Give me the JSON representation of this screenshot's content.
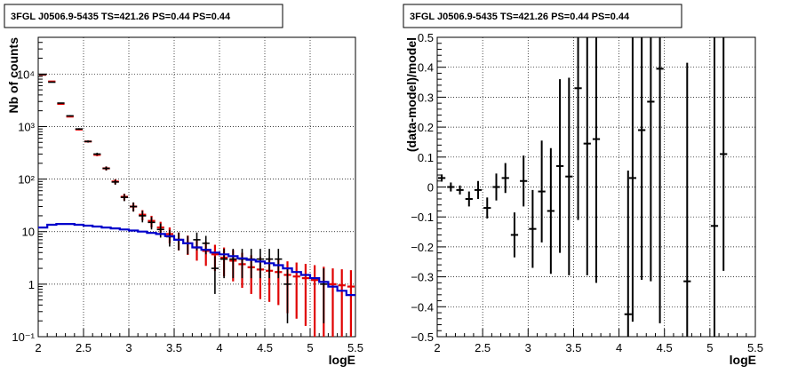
{
  "chart_data": [
    {
      "type": "scatter",
      "title": "3FGL J0506.9-5435 TS=421.26 PS=0.44 PS=0.44",
      "xlabel": "logE",
      "ylabel": "Nb of counts",
      "xlim": [
        2,
        5.5
      ],
      "ylim": [
        0.1,
        50000
      ],
      "yscale": "log",
      "grid": true,
      "x_ticks": [
        "2",
        "2.5",
        "3",
        "3.5",
        "4",
        "4.5",
        "5",
        "5.5"
      ],
      "y_ticks": [
        "10⁻¹",
        "1",
        "10",
        "10²",
        "10³",
        "10⁴"
      ],
      "colors": {
        "data": "#000000",
        "total_model": "#e00000",
        "background_model": "#0000cc"
      },
      "series": [
        {
          "role": "data",
          "x": [
            2.05,
            2.15,
            2.25,
            2.35,
            2.45,
            2.55,
            2.65,
            2.75,
            2.85,
            2.95,
            3.05,
            3.15,
            3.25,
            3.35,
            3.45,
            3.55,
            3.65,
            3.75,
            3.85,
            3.95,
            4.05,
            4.15,
            4.25,
            4.35,
            4.45,
            4.55,
            4.65,
            4.75,
            4.85,
            4.95,
            5.05,
            5.15,
            5.25,
            5.35,
            5.45
          ],
          "y": [
            9800,
            7000,
            2800,
            1600,
            900,
            520,
            300,
            160,
            88,
            45,
            30,
            20,
            15,
            11,
            8,
            7,
            6,
            7,
            6,
            2,
            3,
            3,
            3,
            3,
            3,
            3,
            3,
            1,
            0,
            0,
            0,
            1,
            0,
            0,
            0
          ],
          "yerr": [
            [
              100,
              100
            ],
            [
              80,
              80
            ],
            [
              60,
              60
            ],
            [
              40,
              40
            ],
            [
              30,
              30
            ],
            [
              25,
              25
            ],
            [
              18,
              18
            ],
            [
              14,
              14
            ],
            [
              10,
              10
            ],
            [
              7,
              7
            ],
            [
              6,
              6
            ],
            [
              5,
              5
            ],
            [
              4,
              4
            ],
            [
              3.3,
              3.3
            ],
            [
              2.8,
              2.8
            ],
            [
              2.6,
              2.6
            ],
            [
              2.3,
              2.3
            ],
            [
              2.6,
              2.6
            ],
            [
              2.3,
              2.3
            ],
            [
              1.35,
              1.4
            ],
            [
              1.7,
              1.7
            ],
            [
              1.7,
              1.7
            ],
            [
              1.7,
              1.7
            ],
            [
              1.7,
              1.7
            ],
            [
              1.7,
              1.7
            ],
            [
              1.7,
              1.7
            ],
            [
              1.7,
              1.7
            ],
            [
              0.82,
              1.0
            ],
            null,
            null,
            null,
            [
              0.82,
              1.0
            ],
            null,
            null,
            null
          ]
        },
        {
          "role": "total_model",
          "x": [
            2.05,
            2.15,
            2.25,
            2.35,
            2.45,
            2.55,
            2.65,
            2.75,
            2.85,
            2.95,
            3.05,
            3.15,
            3.25,
            3.35,
            3.45,
            3.55,
            3.65,
            3.75,
            3.85,
            3.95,
            4.05,
            4.15,
            4.25,
            4.35,
            4.45,
            4.55,
            4.65,
            4.75,
            4.85,
            4.95,
            5.05,
            5.15,
            5.25,
            5.35,
            5.45
          ],
          "y": [
            9700,
            7200,
            2700,
            1550,
            880,
            520,
            290,
            160,
            90,
            46,
            30,
            21,
            16,
            12,
            9,
            7,
            6,
            5,
            4.3,
            3.7,
            3.2,
            2.8,
            2.4,
            2.1,
            1.9,
            1.8,
            1.7,
            1.5,
            1.4,
            1.3,
            1.2,
            1.1,
            1.0,
            0.95,
            0.9
          ],
          "yerr": [
            [
              100,
              100
            ],
            [
              85,
              85
            ],
            [
              52,
              52
            ],
            [
              39,
              39
            ],
            [
              30,
              30
            ],
            [
              23,
              23
            ],
            [
              17,
              17
            ],
            [
              13,
              13
            ],
            [
              9.5,
              9.5
            ],
            [
              6.8,
              6.8
            ],
            [
              5.5,
              5.5
            ],
            [
              4.6,
              4.6
            ],
            [
              4,
              4
            ],
            [
              3.4,
              3.4
            ],
            [
              3,
              3
            ],
            [
              2.6,
              2.6
            ],
            [
              2.4,
              2.4
            ],
            [
              2.2,
              2.2
            ],
            [
              2.07,
              2.07
            ],
            [
              1.92,
              1.92
            ],
            [
              1.79,
              1.79
            ],
            [
              1.67,
              1.67
            ],
            [
              1.55,
              1.55
            ],
            [
              1.45,
              1.45
            ],
            [
              1.38,
              1.38
            ],
            [
              1.34,
              1.34
            ],
            [
              1.3,
              1.3
            ],
            [
              1.22,
              1.22
            ],
            [
              1.18,
              1.18
            ],
            [
              1.14,
              1.14
            ],
            [
              1.1,
              1.1
            ],
            [
              1.05,
              1.05
            ],
            [
              0.99,
              1.0
            ],
            [
              0.93,
              0.97
            ],
            [
              0.88,
              0.95
            ]
          ]
        },
        {
          "role": "background_model",
          "x": [
            2.05,
            2.15,
            2.25,
            2.35,
            2.45,
            2.55,
            2.65,
            2.75,
            2.85,
            2.95,
            3.05,
            3.15,
            3.25,
            3.35,
            3.45,
            3.55,
            3.65,
            3.75,
            3.85,
            3.95,
            4.05,
            4.15,
            4.25,
            4.35,
            4.45,
            4.55,
            4.65,
            4.75,
            4.85,
            4.95,
            5.05,
            5.15,
            5.25,
            5.35,
            5.45
          ],
          "y": [
            12,
            13.5,
            14,
            14,
            13.5,
            13,
            12.5,
            12,
            11.5,
            11,
            10.5,
            10,
            9.5,
            9,
            8.2,
            7,
            6,
            5,
            4.5,
            4,
            3.7,
            3.4,
            3.1,
            2.9,
            2.7,
            2.5,
            2.3,
            2,
            1.7,
            1.5,
            1.3,
            1.1,
            0.9,
            0.75,
            0.62
          ]
        }
      ]
    },
    {
      "type": "scatter",
      "title": "3FGL J0506.9-5435 TS=421.26 PS=0.44 PS=0.44",
      "xlabel": "logE",
      "ylabel": "(data-model)/model",
      "xlim": [
        2,
        5.5
      ],
      "ylim": [
        -0.5,
        0.5
      ],
      "grid": true,
      "x_ticks": [
        "2",
        "2.5",
        "3",
        "3.5",
        "4",
        "4.5",
        "5",
        "5.5"
      ],
      "y_ticks": [
        "−0.5",
        "−0.4",
        "−0.3",
        "−0.2",
        "−0.1",
        "0",
        "0.1",
        "0.2",
        "0.3",
        "0.4",
        "0.5"
      ],
      "series": [
        {
          "role": "residuals",
          "x": [
            2.05,
            2.15,
            2.25,
            2.35,
            2.45,
            2.55,
            2.65,
            2.75,
            2.85,
            2.95,
            3.05,
            3.15,
            3.25,
            3.35,
            3.45,
            3.55,
            3.65,
            3.75,
            4.1,
            4.15,
            4.25,
            4.35,
            4.45,
            4.75,
            5.05,
            5.15
          ],
          "y": [
            0.03,
            0.0,
            -0.01,
            -0.04,
            -0.01,
            -0.07,
            0.0,
            0.03,
            -0.16,
            0.02,
            -0.14,
            -0.015,
            -0.08,
            0.07,
            0.035,
            0.33,
            0.145,
            0.16,
            -0.425,
            0.03,
            0.19,
            0.285,
            0.395,
            -0.315,
            -0.13,
            0.11
          ],
          "yerr": [
            0.012,
            0.015,
            0.015,
            0.025,
            0.03,
            0.035,
            0.045,
            0.05,
            0.075,
            0.085,
            0.13,
            0.17,
            0.21,
            0.29,
            0.33,
            0.44,
            0.44,
            0.48,
            0.48,
            0.48,
            0.5,
            0.6,
            0.85,
            0.73,
            0.7,
            0.39
          ]
        }
      ]
    }
  ]
}
